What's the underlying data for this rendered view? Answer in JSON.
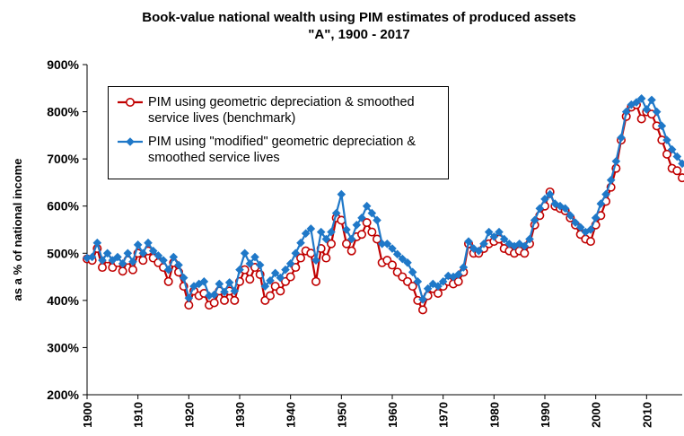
{
  "chart_data": {
    "type": "line",
    "title": [
      "Book-value national wealth using PIM estimates of produced assets",
      "\"A\", 1900 - 2017"
    ],
    "y_label": "as a % of national income",
    "x": [
      1900,
      1901,
      1902,
      1903,
      1904,
      1905,
      1906,
      1907,
      1908,
      1909,
      1910,
      1911,
      1912,
      1913,
      1914,
      1915,
      1916,
      1917,
      1918,
      1919,
      1920,
      1921,
      1922,
      1923,
      1924,
      1925,
      1926,
      1927,
      1928,
      1929,
      1930,
      1931,
      1932,
      1933,
      1934,
      1935,
      1936,
      1937,
      1938,
      1939,
      1940,
      1941,
      1942,
      1943,
      1944,
      1945,
      1946,
      1947,
      1948,
      1949,
      1950,
      1951,
      1952,
      1953,
      1954,
      1955,
      1956,
      1957,
      1958,
      1959,
      1960,
      1961,
      1962,
      1963,
      1964,
      1965,
      1966,
      1967,
      1968,
      1969,
      1970,
      1971,
      1972,
      1973,
      1974,
      1975,
      1976,
      1977,
      1978,
      1979,
      1980,
      1981,
      1982,
      1983,
      1984,
      1985,
      1986,
      1987,
      1988,
      1989,
      1990,
      1991,
      1992,
      1993,
      1994,
      1995,
      1996,
      1997,
      1998,
      1999,
      2000,
      2001,
      2002,
      2003,
      2004,
      2005,
      2006,
      2007,
      2008,
      2009,
      2010,
      2011,
      2012,
      2013,
      2014,
      2015,
      2016,
      2017
    ],
    "series": [
      {
        "name": "PIM using geometric depreciation & smoothed service lives (benchmark)",
        "color": "#c00000",
        "marker": "circle",
        "values": [
          488,
          485,
          510,
          470,
          488,
          470,
          480,
          462,
          485,
          465,
          500,
          485,
          505,
          490,
          480,
          470,
          440,
          480,
          460,
          430,
          390,
          420,
          410,
          415,
          390,
          395,
          420,
          400,
          420,
          400,
          440,
          465,
          445,
          470,
          455,
          400,
          410,
          430,
          420,
          440,
          450,
          470,
          490,
          505,
          500,
          440,
          510,
          490,
          520,
          575,
          570,
          520,
          505,
          535,
          540,
          565,
          545,
          530,
          480,
          485,
          475,
          460,
          450,
          440,
          430,
          400,
          380,
          410,
          425,
          415,
          430,
          440,
          435,
          440,
          460,
          520,
          500,
          500,
          510,
          520,
          525,
          530,
          510,
          505,
          500,
          505,
          500,
          520,
          560,
          580,
          600,
          630,
          600,
          595,
          590,
          575,
          560,
          540,
          530,
          525,
          560,
          580,
          610,
          640,
          680,
          740,
          790,
          810,
          815,
          785,
          800,
          795,
          770,
          740,
          710,
          680,
          675,
          660
        ]
      },
      {
        "name": "PIM using \"modified\" geometric depreciation & smoothed service lives",
        "color": "#1f78c8",
        "marker": "diamond",
        "values": [
          490,
          492,
          522,
          485,
          500,
          485,
          492,
          478,
          500,
          482,
          518,
          500,
          522,
          505,
          495,
          485,
          465,
          492,
          475,
          448,
          405,
          430,
          435,
          440,
          410,
          412,
          435,
          418,
          438,
          420,
          465,
          500,
          478,
          492,
          475,
          430,
          442,
          458,
          448,
          465,
          478,
          500,
          522,
          542,
          552,
          485,
          545,
          530,
          545,
          585,
          625,
          550,
          530,
          560,
          575,
          600,
          585,
          570,
          520,
          520,
          510,
          498,
          488,
          480,
          460,
          440,
          402,
          425,
          435,
          430,
          440,
          452,
          450,
          455,
          470,
          525,
          510,
          505,
          520,
          545,
          535,
          545,
          530,
          520,
          515,
          520,
          515,
          530,
          570,
          595,
          615,
          625,
          605,
          600,
          595,
          580,
          565,
          555,
          545,
          550,
          575,
          605,
          625,
          655,
          695,
          745,
          800,
          815,
          820,
          828,
          805,
          825,
          800,
          770,
          740,
          720,
          705,
          690
        ]
      }
    ],
    "xlim": [
      1900,
      2017
    ],
    "xticks": [
      1900,
      1910,
      1920,
      1930,
      1940,
      1950,
      1960,
      1970,
      1980,
      1990,
      2000,
      2010
    ],
    "ylim": [
      200,
      900
    ],
    "yticks": [
      {
        "value": 200,
        "label": "200%"
      },
      {
        "value": 300,
        "label": "300%"
      },
      {
        "value": 400,
        "label": "400%"
      },
      {
        "value": 500,
        "label": "500%"
      },
      {
        "value": 600,
        "label": "600%"
      },
      {
        "value": 700,
        "label": "700%"
      },
      {
        "value": 800,
        "label": "800%"
      },
      {
        "value": 900,
        "label": "900%"
      }
    ],
    "grid": false,
    "legend": "upper left"
  }
}
